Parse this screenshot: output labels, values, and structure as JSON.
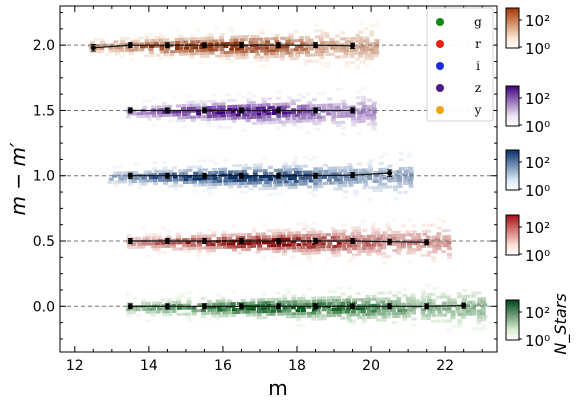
{
  "chart_data": {
    "type": "scatter",
    "xlabel": "m",
    "ylabel": "m − m′",
    "xlim": [
      11.6,
      23.4
    ],
    "ylim": [
      -0.35,
      2.3
    ],
    "xticks": [
      12,
      14,
      16,
      18,
      20,
      22
    ],
    "xtick_labels": [
      "12",
      "14",
      "16",
      "18",
      "20",
      "22"
    ],
    "yticks": [
      0.0,
      0.5,
      1.0,
      1.5,
      2.0
    ],
    "ytick_labels": [
      "0.0",
      "0.5",
      "1.0",
      "1.5",
      "2.0"
    ],
    "reference_lines": [
      0.0,
      0.5,
      1.0,
      1.5,
      2.0
    ],
    "grid": false,
    "legend_position": "top-right",
    "series": [
      {
        "name": "g",
        "color": "#1a8a2e",
        "legend_color": "#138a13",
        "cmap_light": "#d8f0d2",
        "cmap_dark": "#0b5a1c",
        "offset": 0.0,
        "density_range": [
          13.5,
          23.0
        ],
        "points": [
          {
            "x": 13.5,
            "y": 0.0,
            "yerr": 0.015
          },
          {
            "x": 14.5,
            "y": 0.0,
            "yerr": 0.005
          },
          {
            "x": 15.5,
            "y": 0.0,
            "yerr": 0.005
          },
          {
            "x": 16.5,
            "y": 0.0,
            "yerr": 0.005
          },
          {
            "x": 17.5,
            "y": 0.0,
            "yerr": 0.005
          },
          {
            "x": 18.5,
            "y": 0.0,
            "yerr": 0.005
          },
          {
            "x": 19.5,
            "y": 0.0,
            "yerr": 0.005
          },
          {
            "x": 20.5,
            "y": 0.0,
            "yerr": 0.005
          },
          {
            "x": 21.5,
            "y": 0.0,
            "yerr": 0.008
          },
          {
            "x": 22.5,
            "y": 0.005,
            "yerr": 0.012
          }
        ]
      },
      {
        "name": "r",
        "color": "#d7231f",
        "legend_color": "#e8201a",
        "cmap_light": "#fde0d6",
        "cmap_dark": "#8a0a0a",
        "offset": 0.5,
        "density_range": [
          13.5,
          22.0
        ],
        "points": [
          {
            "x": 13.5,
            "y": 0.5,
            "yerr": 0.008
          },
          {
            "x": 14.5,
            "y": 0.5,
            "yerr": 0.005
          },
          {
            "x": 15.5,
            "y": 0.5,
            "yerr": 0.005
          },
          {
            "x": 16.5,
            "y": 0.5,
            "yerr": 0.005
          },
          {
            "x": 17.5,
            "y": 0.5,
            "yerr": 0.005
          },
          {
            "x": 18.5,
            "y": 0.5,
            "yerr": 0.005
          },
          {
            "x": 19.5,
            "y": 0.5,
            "yerr": 0.005
          },
          {
            "x": 20.5,
            "y": 0.495,
            "yerr": 0.008
          },
          {
            "x": 21.5,
            "y": 0.49,
            "yerr": 0.012
          }
        ]
      },
      {
        "name": "i",
        "color": "#1c64b0",
        "legend_color": "#1a2ee0",
        "cmap_light": "#d9e8f6",
        "cmap_dark": "#08306b",
        "offset": 1.0,
        "density_range": [
          13.0,
          21.0
        ],
        "points": [
          {
            "x": 13.5,
            "y": 1.0,
            "yerr": 0.01
          },
          {
            "x": 14.5,
            "y": 1.0,
            "yerr": 0.005
          },
          {
            "x": 15.5,
            "y": 1.0,
            "yerr": 0.005
          },
          {
            "x": 16.5,
            "y": 1.0,
            "yerr": 0.005
          },
          {
            "x": 17.5,
            "y": 1.0,
            "yerr": 0.005
          },
          {
            "x": 18.5,
            "y": 1.0,
            "yerr": 0.008
          },
          {
            "x": 19.5,
            "y": 1.005,
            "yerr": 0.015
          },
          {
            "x": 20.5,
            "y": 1.02,
            "yerr": 0.025
          }
        ]
      },
      {
        "name": "z",
        "color": "#6a3d9a",
        "legend_color": "#4b1a7a",
        "cmap_light": "#ece4f3",
        "cmap_dark": "#3f007d",
        "offset": 1.5,
        "density_range": [
          13.5,
          20.0
        ],
        "points": [
          {
            "x": 13.5,
            "y": 1.5,
            "yerr": 0.005
          },
          {
            "x": 14.5,
            "y": 1.5,
            "yerr": 0.005
          },
          {
            "x": 15.5,
            "y": 1.5,
            "yerr": 0.005
          },
          {
            "x": 16.5,
            "y": 1.5,
            "yerr": 0.005
          },
          {
            "x": 17.5,
            "y": 1.5,
            "yerr": 0.005
          },
          {
            "x": 18.5,
            "y": 1.5,
            "yerr": 0.005
          },
          {
            "x": 19.5,
            "y": 1.5,
            "yerr": 0.012
          }
        ]
      },
      {
        "name": "y",
        "color": "#e8741a",
        "legend_color": "#f5a316",
        "cmap_light": "#fde5cf",
        "cmap_dark": "#8c2d04",
        "offset": 2.0,
        "density_range": [
          12.5,
          20.0
        ],
        "points": [
          {
            "x": 12.5,
            "y": 1.98,
            "yerr": 0.025
          },
          {
            "x": 13.5,
            "y": 2.0,
            "yerr": 0.008
          },
          {
            "x": 14.5,
            "y": 2.0,
            "yerr": 0.005
          },
          {
            "x": 15.5,
            "y": 2.0,
            "yerr": 0.005
          },
          {
            "x": 16.5,
            "y": 2.0,
            "yerr": 0.005
          },
          {
            "x": 17.5,
            "y": 2.0,
            "yerr": 0.005
          },
          {
            "x": 18.5,
            "y": 2.0,
            "yerr": 0.005
          },
          {
            "x": 19.5,
            "y": 1.995,
            "yerr": 0.02
          }
        ]
      }
    ],
    "colorbars": [
      {
        "for_series": "y",
        "color_light": "#fde5cf",
        "color_dark": "#a63603",
        "labels": [
          "10²",
          "10⁰"
        ]
      },
      {
        "for_series": "z",
        "color_light": "#ece4f3",
        "color_dark": "#3f007d",
        "labels": [
          "10²",
          "10⁰"
        ]
      },
      {
        "for_series": "i",
        "color_light": "#d9e8f6",
        "color_dark": "#08306b",
        "labels": [
          "10²",
          "10⁰"
        ]
      },
      {
        "for_series": "r",
        "color_light": "#fde0d6",
        "color_dark": "#a50f15",
        "labels": [
          "10²",
          "10⁰"
        ]
      },
      {
        "for_series": "g",
        "color_light": "#d8f0d2",
        "color_dark": "#00441b",
        "labels": [
          "10²",
          "10⁰"
        ]
      }
    ],
    "colorbar_label": "N_Stars"
  }
}
